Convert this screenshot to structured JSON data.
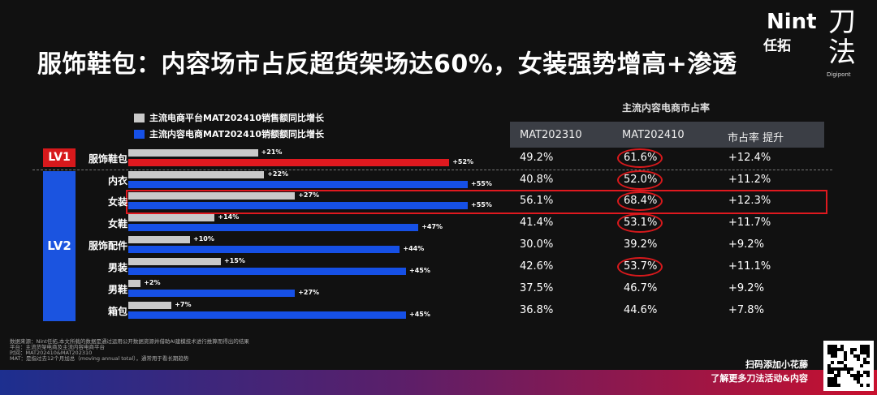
{
  "title": "服饰鞋包：内容场市占反超货架场达60%，女装强势增高+渗透",
  "logo": {
    "nint": "Nint",
    "sub": "任拓",
    "daofa": "刀法",
    "digi": "Digipont"
  },
  "legend": {
    "gray": "主流电商平台MAT202410销售额同比增长",
    "blue": "主流内容电商MAT202410销额额同比增长",
    "gray_color": "#c9c9c9",
    "blue_color": "#1650e6"
  },
  "table": {
    "super_header": "主流内容电商市占率",
    "headers": [
      "MAT202310",
      "MAT202410",
      "市占率 提升"
    ]
  },
  "groups": {
    "lv1": "LV1",
    "lv2": "LV2"
  },
  "chart_data": {
    "type": "bar",
    "orientation": "horizontal",
    "categories": [
      "服饰鞋包",
      "内衣",
      "女装",
      "女鞋",
      "服饰配件",
      "男装",
      "男鞋",
      "箱包"
    ],
    "series": [
      {
        "name": "主流电商平台MAT202410销售额同比增长",
        "values": [
          21,
          22,
          27,
          14,
          10,
          15,
          2,
          7
        ],
        "labels": [
          "+21%",
          "+22%",
          "+27%",
          "+14%",
          "+10%",
          "+15%",
          "+2%",
          "+7%"
        ]
      },
      {
        "name": "主流内容电商MAT202410销额额同比增长",
        "values": [
          52,
          55,
          55,
          47,
          44,
          45,
          27,
          45
        ],
        "labels": [
          "+52%",
          "+55%",
          "+55%",
          "+47%",
          "+44%",
          "+45%",
          "+27%",
          "+45%"
        ]
      }
    ],
    "table": {
      "MAT202310": [
        "49.2%",
        "40.8%",
        "56.1%",
        "41.4%",
        "30.0%",
        "42.6%",
        "37.5%",
        "36.8%"
      ],
      "MAT202410": [
        "61.6%",
        "52.0%",
        "68.4%",
        "53.1%",
        "39.2%",
        "53.7%",
        "46.7%",
        "44.6%"
      ],
      "lift": [
        "+12.4%",
        "+11.2%",
        "+12.3%",
        "+11.7%",
        "+9.2%",
        "+11.1%",
        "+9.2%",
        "+7.8%"
      ],
      "circled": [
        true,
        true,
        true,
        true,
        false,
        true,
        false,
        false
      ]
    },
    "highlighted_category": "女装"
  },
  "footnote": [
    "数据来源：Nint任拓,本文所载的数据是通过运用公开数据资源并借助AI建模技术进行推算而得出的结果",
    "平台：主流货架电商及主流内容电商平台",
    "时间：MAT202410&MAT202310",
    "MAT：是指过去12个月加总（moving annual total），通常用于看长期趋势"
  ],
  "qr": {
    "line1": "扫码添加小花藤",
    "line2": "了解更多刀法活动&内容"
  }
}
